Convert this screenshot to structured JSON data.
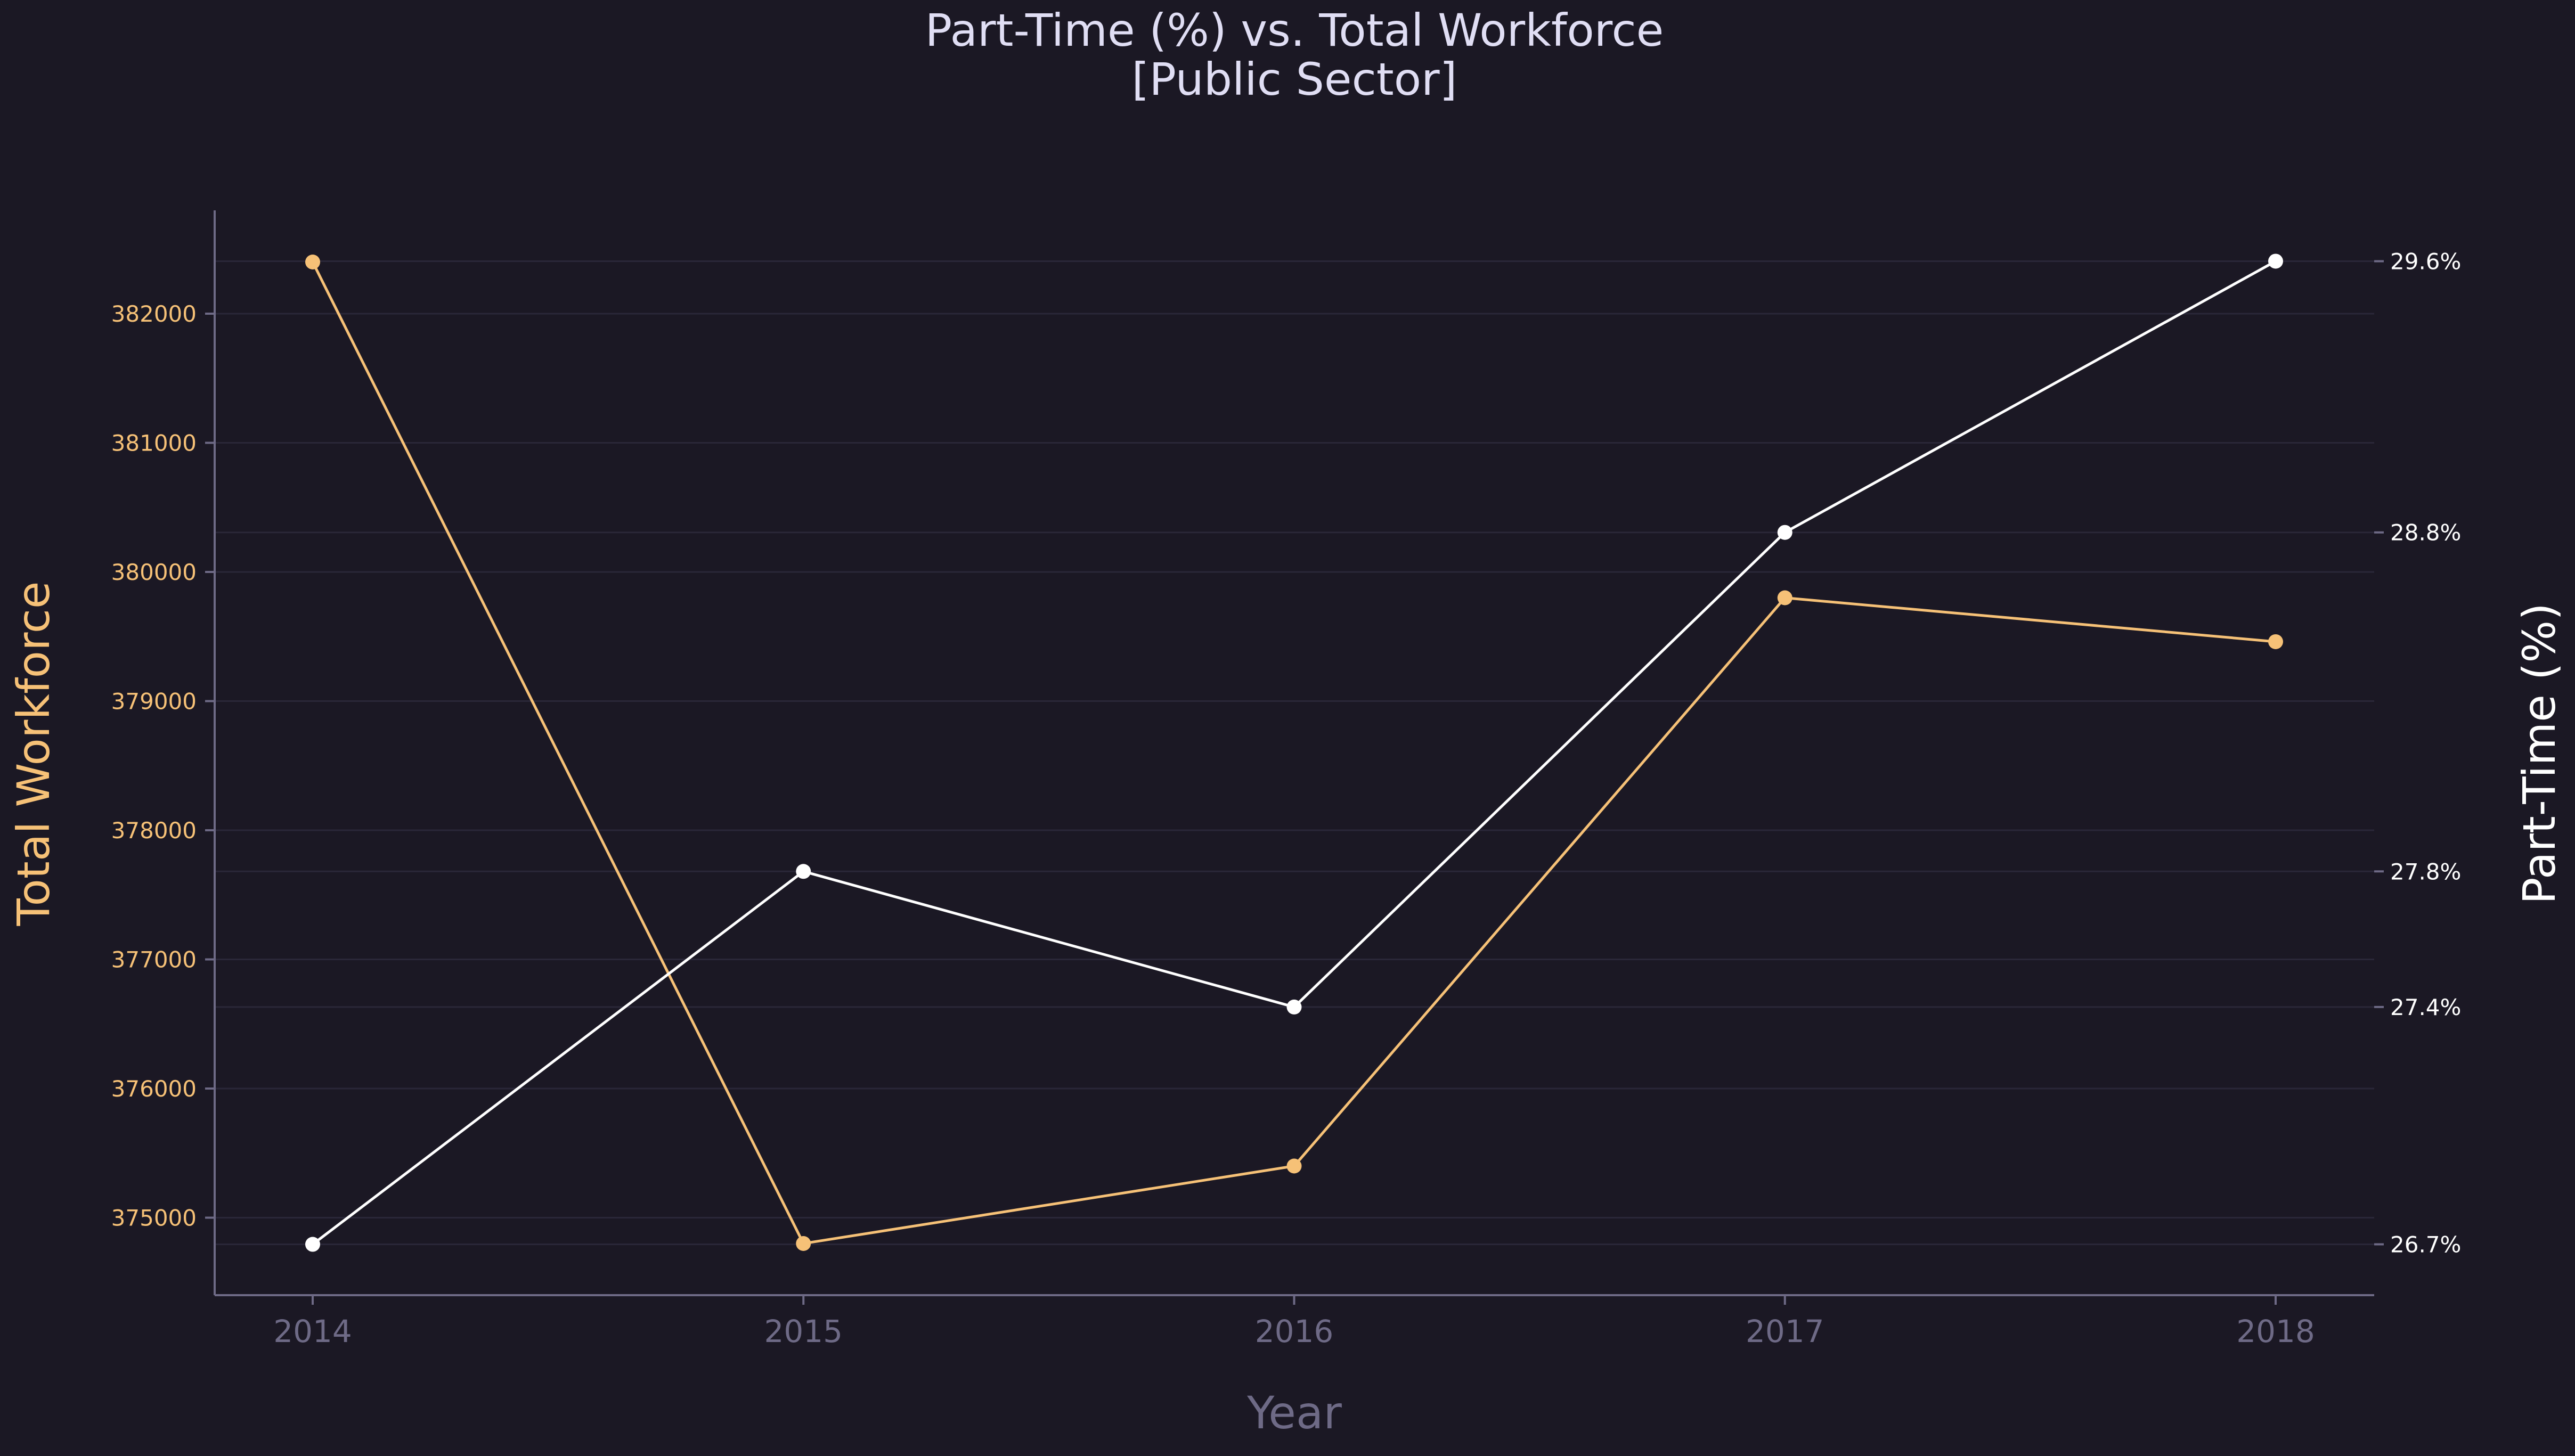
{
  "chart_data": {
    "type": "line",
    "title": "Part-Time (%) vs. Total Workforce",
    "subtitle": "[Public Sector]",
    "xlabel": "Year",
    "ylabel_left": "Total Workforce",
    "ylabel_right": "Part-Time (%)",
    "categories": [
      "2014",
      "2015",
      "2016",
      "2017",
      "2018"
    ],
    "y_left": {
      "ticks": [
        375000,
        376000,
        377000,
        378000,
        379000,
        380000,
        381000,
        382000
      ],
      "range": [
        374400,
        382800
      ]
    },
    "y_right": {
      "ticks": [
        26.7,
        27.4,
        27.8,
        28.8,
        29.6
      ],
      "tick_labels": [
        "26.7%",
        "27.4%",
        "27.8%",
        "28.8%",
        "29.6%"
      ],
      "range": [
        26.55,
        29.75
      ]
    },
    "series": [
      {
        "axis": "left",
        "color": "#f6c177",
        "values": [
          382400,
          374800,
          375400,
          379800,
          379460
        ]
      },
      {
        "axis": "right",
        "color": "#ffffff",
        "values": [
          26.7,
          27.8,
          27.4,
          28.8,
          29.6
        ]
      }
    ],
    "grid": true,
    "colors": {
      "background": "#1b1824",
      "title": "#e0def4",
      "muted": "#6e6a86",
      "left_axis": "#f6c177",
      "right_axis": "#ffffff",
      "grid": "#2a2738"
    }
  }
}
